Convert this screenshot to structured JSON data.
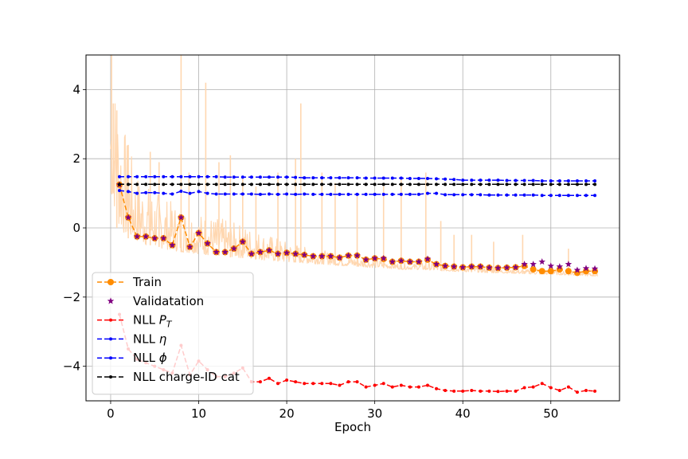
{
  "chart_data": {
    "type": "line",
    "title": "",
    "xlabel": "Epoch",
    "ylabel": "",
    "xlim": [
      -2.8,
      57.8
    ],
    "ylim": [
      -5.0,
      5.0
    ],
    "xticks": [
      0,
      10,
      20,
      30,
      40,
      50
    ],
    "yticks": [
      -4,
      -2,
      0,
      2,
      4
    ],
    "grid": true,
    "legend_position": "lower-left",
    "batch_trace": {
      "name": "",
      "color": "#ffd7b0",
      "x_range": [
        0,
        55.3
      ],
      "y_upper": [
        5.0,
        3.6,
        2.4,
        1.6,
        1.3,
        1.1,
        0.9,
        0.75,
        0.65,
        0.55,
        0.45,
        0.4,
        0.3,
        0.25,
        0.15,
        0.1,
        0.0,
        -0.1,
        -0.2,
        -0.3,
        -0.4,
        -0.45,
        -0.55,
        -0.6,
        -0.65,
        -0.7,
        -0.75,
        -0.8,
        -0.85,
        -0.9,
        -0.9,
        -0.95,
        -1.0,
        -1.0,
        -1.05,
        -1.0,
        -1.0,
        -1.0,
        -1.05,
        -1.1,
        -1.1,
        -1.1,
        -1.15,
        -1.15,
        -1.2,
        -1.2,
        -1.2,
        -1.2,
        -1.2,
        -1.2,
        -1.2,
        -1.25,
        -1.25,
        -1.25,
        -1.3,
        -1.3
      ],
      "y_lower": [
        1.0,
        0.0,
        -0.3,
        -0.4,
        -0.5,
        -0.55,
        -0.6,
        -0.65,
        -0.7,
        -0.72,
        -0.75,
        -0.78,
        -0.8,
        -0.82,
        -0.85,
        -0.87,
        -0.9,
        -0.92,
        -0.95,
        -0.97,
        -1.0,
        -1.0,
        -1.02,
        -1.04,
        -1.05,
        -1.07,
        -1.1,
        -1.1,
        -1.12,
        -1.14,
        -1.15,
        -1.16,
        -1.18,
        -1.2,
        -1.2,
        -1.21,
        -1.22,
        -1.24,
        -1.25,
        -1.26,
        -1.27,
        -1.28,
        -1.29,
        -1.3,
        -1.3,
        -1.31,
        -1.32,
        -1.33,
        -1.34,
        -1.35,
        -1.35,
        -1.36,
        -1.37,
        -1.38,
        -1.39,
        -1.4
      ],
      "spikes": [
        [
          0.1,
          5.0
        ],
        [
          0.3,
          3.6
        ],
        [
          0.7,
          3.4
        ],
        [
          2.0,
          2.4
        ],
        [
          4.5,
          2.2
        ],
        [
          5.5,
          1.9
        ],
        [
          8.0,
          5.0
        ],
        [
          8.9,
          1.6
        ],
        [
          10.8,
          4.2
        ],
        [
          12.3,
          1.9
        ],
        [
          13.6,
          2.1
        ],
        [
          15.0,
          1.5
        ],
        [
          16.5,
          1.2
        ],
        [
          19.0,
          1.6
        ],
        [
          21.0,
          2.0
        ],
        [
          21.6,
          3.6
        ],
        [
          24.0,
          1.6
        ],
        [
          25.5,
          1.3
        ],
        [
          28.0,
          1.0
        ],
        [
          31.0,
          1.2
        ],
        [
          33.0,
          1.4
        ],
        [
          35.8,
          1.6
        ],
        [
          37.5,
          0.2
        ],
        [
          39.0,
          -0.2
        ],
        [
          41.0,
          -0.2
        ],
        [
          43.5,
          -0.4
        ],
        [
          46.8,
          -0.2
        ],
        [
          52.0,
          -0.6
        ]
      ]
    },
    "series": [
      {
        "name": "Train",
        "color": "#ff8c00",
        "marker": "circle",
        "x": [
          1,
          2,
          3,
          4,
          5,
          6,
          7,
          8,
          9,
          10,
          11,
          12,
          13,
          14,
          15,
          16,
          17,
          18,
          19,
          20,
          21,
          22,
          23,
          24,
          25,
          26,
          27,
          28,
          29,
          30,
          31,
          32,
          33,
          34,
          35,
          36,
          37,
          38,
          39,
          40,
          41,
          42,
          43,
          44,
          45,
          46,
          47,
          48,
          49,
          50,
          51,
          52,
          53,
          54,
          55
        ],
        "values": [
          1.25,
          0.3,
          -0.25,
          -0.25,
          -0.3,
          -0.3,
          -0.5,
          0.3,
          -0.55,
          -0.15,
          -0.45,
          -0.7,
          -0.7,
          -0.6,
          -0.4,
          -0.75,
          -0.7,
          -0.65,
          -0.75,
          -0.72,
          -0.75,
          -0.78,
          -0.82,
          -0.82,
          -0.82,
          -0.86,
          -0.8,
          -0.8,
          -0.92,
          -0.88,
          -0.9,
          -0.98,
          -0.95,
          -0.98,
          -0.98,
          -0.92,
          -1.05,
          -1.1,
          -1.12,
          -1.14,
          -1.12,
          -1.12,
          -1.15,
          -1.16,
          -1.15,
          -1.14,
          -1.1,
          -1.2,
          -1.25,
          -1.25,
          -1.2,
          -1.25,
          -1.3,
          -1.25,
          -1.25
        ]
      },
      {
        "name": "Validatation",
        "color": "#800080",
        "marker": "star",
        "x": [
          1,
          2,
          3,
          4,
          5,
          6,
          7,
          8,
          9,
          10,
          11,
          12,
          13,
          14,
          15,
          16,
          17,
          18,
          19,
          20,
          21,
          22,
          23,
          24,
          25,
          26,
          27,
          28,
          29,
          30,
          31,
          32,
          33,
          34,
          35,
          36,
          37,
          38,
          39,
          40,
          41,
          42,
          43,
          44,
          45,
          46,
          47,
          48,
          49,
          50,
          51,
          52,
          53,
          54,
          55
        ],
        "values": [
          1.25,
          0.3,
          -0.25,
          -0.25,
          -0.3,
          -0.3,
          -0.5,
          0.3,
          -0.55,
          -0.15,
          -0.45,
          -0.7,
          -0.7,
          -0.6,
          -0.4,
          -0.75,
          -0.7,
          -0.65,
          -0.75,
          -0.72,
          -0.75,
          -0.78,
          -0.82,
          -0.82,
          -0.82,
          -0.86,
          -0.8,
          -0.8,
          -0.92,
          -0.88,
          -0.88,
          -0.98,
          -0.95,
          -0.98,
          -0.98,
          -0.9,
          -1.05,
          -1.1,
          -1.12,
          -1.14,
          -1.12,
          -1.12,
          -1.15,
          -1.16,
          -1.15,
          -1.14,
          -1.05,
          -1.05,
          -0.98,
          -1.1,
          -1.12,
          -1.05,
          -1.22,
          -1.17,
          -1.18
        ]
      },
      {
        "name": "NLL $P_T$",
        "label_main": "NLL ",
        "label_italic": "P",
        "label_sub": "T",
        "color": "#ff0000",
        "marker": "dot",
        "x": [
          1,
          2,
          3,
          4,
          5,
          6,
          7,
          8,
          9,
          10,
          11,
          12,
          13,
          14,
          15,
          16,
          17,
          18,
          19,
          20,
          21,
          22,
          23,
          24,
          25,
          26,
          27,
          28,
          29,
          30,
          31,
          32,
          33,
          34,
          35,
          36,
          37,
          38,
          39,
          40,
          41,
          42,
          43,
          44,
          45,
          46,
          47,
          48,
          49,
          50,
          51,
          52,
          53,
          54,
          55
        ],
        "values": [
          -2.5,
          -3.5,
          -3.8,
          -3.9,
          -4.0,
          -4.1,
          -4.2,
          -3.4,
          -4.25,
          -3.85,
          -4.1,
          -4.3,
          -4.3,
          -4.2,
          -4.05,
          -4.45,
          -4.45,
          -4.35,
          -4.5,
          -4.4,
          -4.45,
          -4.5,
          -4.5,
          -4.5,
          -4.5,
          -4.55,
          -4.45,
          -4.45,
          -4.6,
          -4.55,
          -4.5,
          -4.6,
          -4.55,
          -4.6,
          -4.6,
          -4.55,
          -4.65,
          -4.7,
          -4.72,
          -4.72,
          -4.7,
          -4.72,
          -4.72,
          -4.73,
          -4.72,
          -4.72,
          -4.62,
          -4.6,
          -4.5,
          -4.62,
          -4.7,
          -4.6,
          -4.75,
          -4.7,
          -4.72
        ]
      },
      {
        "name": "NLL $\\eta$",
        "label_main": "NLL ",
        "label_italic": "η",
        "color": "#0000ff",
        "marker": "dot",
        "x": [
          1,
          2,
          3,
          4,
          5,
          6,
          7,
          8,
          9,
          10,
          11,
          12,
          13,
          14,
          15,
          16,
          17,
          18,
          19,
          20,
          21,
          22,
          23,
          24,
          25,
          26,
          27,
          28,
          29,
          30,
          31,
          32,
          33,
          34,
          35,
          36,
          37,
          38,
          39,
          40,
          41,
          42,
          43,
          44,
          45,
          46,
          47,
          48,
          49,
          50,
          51,
          52,
          53,
          54,
          55
        ],
        "values": [
          1.48,
          1.48,
          1.48,
          1.48,
          1.48,
          1.48,
          1.48,
          1.48,
          1.48,
          1.48,
          1.48,
          1.48,
          1.47,
          1.47,
          1.47,
          1.47,
          1.47,
          1.47,
          1.47,
          1.47,
          1.46,
          1.45,
          1.45,
          1.45,
          1.45,
          1.45,
          1.45,
          1.45,
          1.44,
          1.44,
          1.44,
          1.44,
          1.44,
          1.43,
          1.43,
          1.43,
          1.42,
          1.41,
          1.4,
          1.38,
          1.38,
          1.38,
          1.38,
          1.38,
          1.37,
          1.37,
          1.37,
          1.37,
          1.36,
          1.36,
          1.36,
          1.36,
          1.36,
          1.36,
          1.36
        ]
      },
      {
        "name": "NLL $\\phi$",
        "label_main": "NLL ",
        "label_italic": "ϕ",
        "color": "#0000ff",
        "marker": "dot",
        "x": [
          1,
          2,
          3,
          4,
          5,
          6,
          7,
          8,
          9,
          10,
          11,
          12,
          13,
          14,
          15,
          16,
          17,
          18,
          19,
          20,
          21,
          22,
          23,
          24,
          25,
          26,
          27,
          28,
          29,
          30,
          31,
          32,
          33,
          34,
          35,
          36,
          37,
          38,
          39,
          40,
          41,
          42,
          43,
          44,
          45,
          46,
          47,
          48,
          49,
          50,
          51,
          52,
          53,
          54,
          55
        ],
        "values": [
          1.08,
          1.05,
          1.0,
          1.02,
          1.02,
          1.0,
          0.98,
          1.06,
          1.0,
          1.05,
          1.0,
          0.98,
          0.98,
          0.98,
          0.98,
          0.98,
          0.97,
          0.98,
          0.97,
          0.98,
          0.97,
          0.98,
          0.97,
          0.97,
          0.97,
          0.97,
          0.97,
          0.97,
          0.97,
          0.97,
          0.97,
          0.97,
          0.97,
          0.97,
          0.97,
          1.0,
          1.0,
          0.96,
          0.96,
          0.96,
          0.96,
          0.96,
          0.95,
          0.95,
          0.95,
          0.95,
          0.95,
          0.95,
          0.94,
          0.94,
          0.94,
          0.94,
          0.94,
          0.94,
          0.94
        ]
      },
      {
        "name": "NLL charge-ID cat",
        "color": "#000000",
        "marker": "dot",
        "x": [
          1,
          2,
          3,
          4,
          5,
          6,
          7,
          8,
          9,
          10,
          11,
          12,
          13,
          14,
          15,
          16,
          17,
          18,
          19,
          20,
          21,
          22,
          23,
          24,
          25,
          26,
          27,
          28,
          29,
          30,
          31,
          32,
          33,
          34,
          35,
          36,
          37,
          38,
          39,
          40,
          41,
          42,
          43,
          44,
          45,
          46,
          47,
          48,
          49,
          50,
          51,
          52,
          53,
          54,
          55
        ],
        "values": [
          1.26,
          1.26,
          1.26,
          1.26,
          1.26,
          1.26,
          1.26,
          1.26,
          1.26,
          1.26,
          1.26,
          1.26,
          1.26,
          1.26,
          1.26,
          1.26,
          1.26,
          1.26,
          1.26,
          1.26,
          1.26,
          1.26,
          1.26,
          1.26,
          1.26,
          1.26,
          1.26,
          1.26,
          1.26,
          1.26,
          1.26,
          1.26,
          1.26,
          1.26,
          1.26,
          1.26,
          1.26,
          1.26,
          1.26,
          1.26,
          1.26,
          1.26,
          1.26,
          1.26,
          1.26,
          1.26,
          1.26,
          1.26,
          1.26,
          1.26,
          1.26,
          1.26,
          1.26,
          1.26,
          1.26
        ]
      }
    ]
  }
}
